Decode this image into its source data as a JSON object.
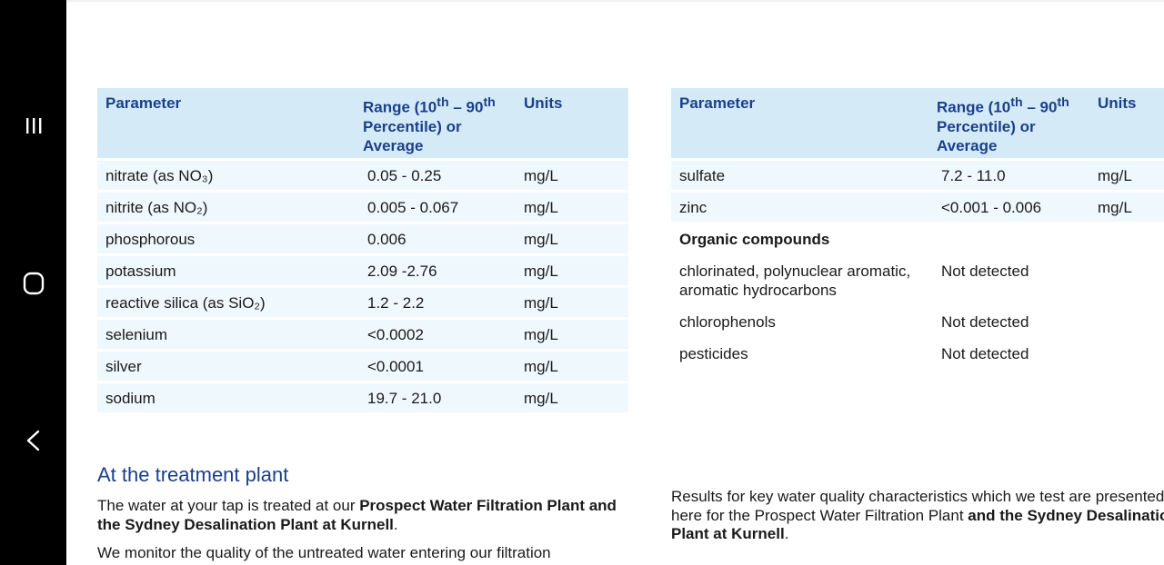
{
  "nav": {
    "recent_icon": "recent-apps-icon",
    "home_icon": "home-icon",
    "back_icon": "back-icon"
  },
  "table1": {
    "headers": {
      "parameter": "Parameter",
      "range": "Range (10th – 90th Percentile) or Average",
      "units": "Units"
    },
    "rows": [
      {
        "parameter": "nitrate (as NO₃)",
        "range": "0.05 - 0.25",
        "units": "mg/L"
      },
      {
        "parameter": "nitrite (as NO₂)",
        "range": "0.005 - 0.067",
        "units": "mg/L"
      },
      {
        "parameter": "phosphorous",
        "range": "0.006",
        "units": "mg/L"
      },
      {
        "parameter": "potassium",
        "range": "2.09 -2.76",
        "units": "mg/L"
      },
      {
        "parameter": "reactive silica (as SiO₂)",
        "range": "1.2 - 2.2",
        "units": "mg/L"
      },
      {
        "parameter": "selenium",
        "range": "<0.0002",
        "units": "mg/L"
      },
      {
        "parameter": "silver",
        "range": "<0.0001",
        "units": "mg/L"
      },
      {
        "parameter": "sodium",
        "range": "19.7 - 21.0",
        "units": "mg/L"
      }
    ]
  },
  "table2": {
    "headers": {
      "parameter": "Parameter",
      "range": "Range (10th – 90th Percentile) or Average",
      "units": "Units"
    },
    "rows": [
      {
        "parameter": "sulfate",
        "range": "7.2 - 11.0",
        "units": "mg/L"
      },
      {
        "parameter": "zinc",
        "range": "<0.001 - 0.006",
        "units": "mg/L"
      },
      {
        "parameter": "Organic compounds",
        "range": "",
        "units": ""
      },
      {
        "parameter": "chlorinated, polynuclear aromatic, aromatic hydrocarbons",
        "range": "Not detected",
        "units": ""
      },
      {
        "parameter": "chlorophenols",
        "range": "Not detected",
        "units": ""
      },
      {
        "parameter": "pesticides",
        "range": "Not detected",
        "units": ""
      }
    ]
  },
  "section": {
    "heading": "At the treatment plant",
    "para1_lead": "The water at your tap is treated at our ",
    "para1_bold": "Prospect Water Filtration Plant and the Sydney Desalination Plant at Kurnell",
    "para1_end": ".",
    "para2": "We monitor the quality of the untreated water entering our filtration",
    "para3_lead": "Results for key water quality characteristics which we test are presented here for the Prospect Water Filtration Plant ",
    "para3_bold": "and the Sydney Desalination Plant at Kurnell",
    "para3_end": "."
  }
}
